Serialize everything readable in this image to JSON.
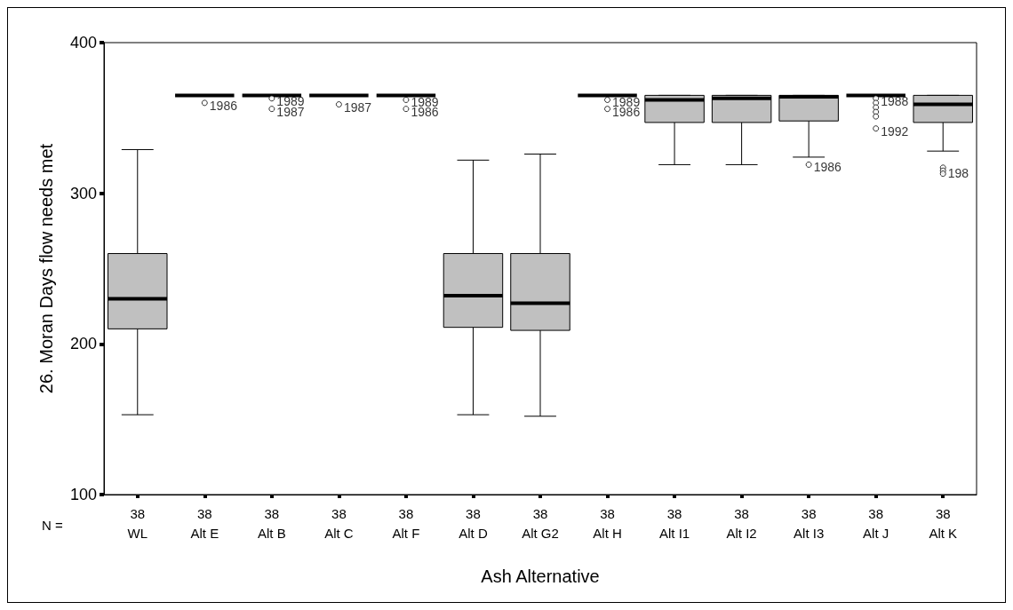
{
  "chart_data": {
    "type": "box",
    "ylabel": "26. Moran Days flow needs met",
    "xlabel": "Ash Alternative",
    "categories": [
      "WL",
      "Alt E",
      "Alt B",
      "Alt C",
      "Alt F",
      "Alt D",
      "Alt G2",
      "Alt H",
      "Alt I1",
      "Alt I2",
      "Alt I3",
      "Alt J",
      "Alt K"
    ],
    "colors": [
      "#c0c0c0",
      "#000000",
      "#000000",
      "#000000",
      "#000000",
      "#c0c0c0",
      "#c0c0c0",
      "#000000",
      "#c0c0c0",
      "#c0c0c0",
      "#c0c0c0",
      "#000000",
      "#c0c0c0"
    ],
    "boxes": [
      {
        "low": 153,
        "q1": 210,
        "median": 230,
        "q3": 260,
        "high": 329
      },
      {
        "low": 365,
        "q1": 365,
        "median": 365,
        "q3": 365,
        "high": 365
      },
      {
        "low": 365,
        "q1": 365,
        "median": 365,
        "q3": 365,
        "high": 365
      },
      {
        "low": 365,
        "q1": 365,
        "median": 365,
        "q3": 365,
        "high": 365
      },
      {
        "low": 365,
        "q1": 365,
        "median": 365,
        "q3": 365,
        "high": 365
      },
      {
        "low": 153,
        "q1": 211,
        "median": 232,
        "q3": 260,
        "high": 322
      },
      {
        "low": 152,
        "q1": 209,
        "median": 227,
        "q3": 260,
        "high": 326
      },
      {
        "low": 365,
        "q1": 365,
        "median": 365,
        "q3": 365,
        "high": 365
      },
      {
        "low": 319,
        "q1": 347,
        "median": 362,
        "q3": 365,
        "high": 365
      },
      {
        "low": 319,
        "q1": 347,
        "median": 363,
        "q3": 365,
        "high": 365
      },
      {
        "low": 324,
        "q1": 348,
        "median": 364,
        "q3": 365,
        "high": 365
      },
      {
        "low": 365,
        "q1": 365,
        "median": 365,
        "q3": 365,
        "high": 365
      },
      {
        "low": 328,
        "q1": 347,
        "median": 359,
        "q3": 365,
        "high": 365
      }
    ],
    "series": [
      {
        "type": "scatter",
        "color": "#000000",
        "x": [
          "Alt E",
          "Alt B",
          "Alt B",
          "Alt C",
          "Alt F",
          "Alt F",
          "Alt H",
          "Alt H",
          "Alt I3",
          "Alt J",
          "Alt J",
          "Alt J",
          "Alt J",
          "Alt J",
          "Alt J",
          "Alt K",
          "Alt K",
          "Alt K"
        ],
        "values": [
          360,
          363,
          356,
          359,
          362,
          356,
          362,
          356,
          319,
          363,
          360,
          357,
          354,
          351,
          343,
          317,
          315,
          313
        ]
      }
    ],
    "ylim": [
      100,
      400
    ],
    "yticks": [
      100,
      200,
      300,
      400
    ],
    "grid": false,
    "annotations": [
      "N =",
      "38",
      "38",
      "38",
      "38",
      "38",
      "38",
      "38",
      "38",
      "38",
      "38",
      "38",
      "38",
      "38",
      {
        "text": "1986",
        "x": "Alt E",
        "y": 360
      },
      {
        "text": "1989",
        "x": "Alt B",
        "y": 363
      },
      {
        "text": "1987",
        "x": "Alt B",
        "y": 356
      },
      {
        "text": "1987",
        "x": "Alt C",
        "y": 359
      },
      {
        "text": "1989",
        "x": "Alt F",
        "y": 362
      },
      {
        "text": "1986",
        "x": "Alt F",
        "y": 356
      },
      {
        "text": "1989",
        "x": "Alt H",
        "y": 362
      },
      {
        "text": "1986",
        "x": "Alt H",
        "y": 356
      },
      {
        "text": "1986",
        "x": "Alt I3",
        "y": 319
      },
      {
        "text": "1988",
        "x": "Alt J",
        "y": 363
      },
      {
        "text": "1992",
        "x": "Alt J",
        "y": 343
      },
      {
        "text": "198",
        "x": "Alt K",
        "y": 315
      }
    ]
  }
}
